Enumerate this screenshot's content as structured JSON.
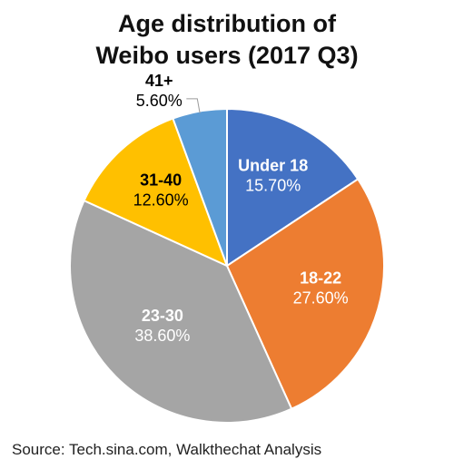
{
  "chart_data": {
    "type": "pie",
    "title": [
      "Age distribution of",
      "Weibo users (2017 Q3)"
    ],
    "slices": [
      {
        "label": "Under 18",
        "value": 15.7,
        "value_label": "15.70%",
        "color": "#4472C4",
        "text_color": "#ffffff"
      },
      {
        "label": "18-22",
        "value": 27.6,
        "value_label": "27.60%",
        "color": "#ED7D31",
        "text_color": "#ffffff"
      },
      {
        "label": "23-30",
        "value": 38.6,
        "value_label": "38.60%",
        "color": "#A5A5A5",
        "text_color": "#ffffff"
      },
      {
        "label": "31-40",
        "value": 12.6,
        "value_label": "12.60%",
        "color": "#FFC000",
        "text_color": "#000000"
      },
      {
        "label": "41+",
        "value": 5.6,
        "value_label": "5.60%",
        "color": "#5B9BD5",
        "text_color": "#000000"
      }
    ],
    "start_angle": "12 o'clock",
    "direction": "clockwise",
    "legend": "none"
  },
  "source_note": "Source: Tech.sina.com, Walkthechat Analysis"
}
